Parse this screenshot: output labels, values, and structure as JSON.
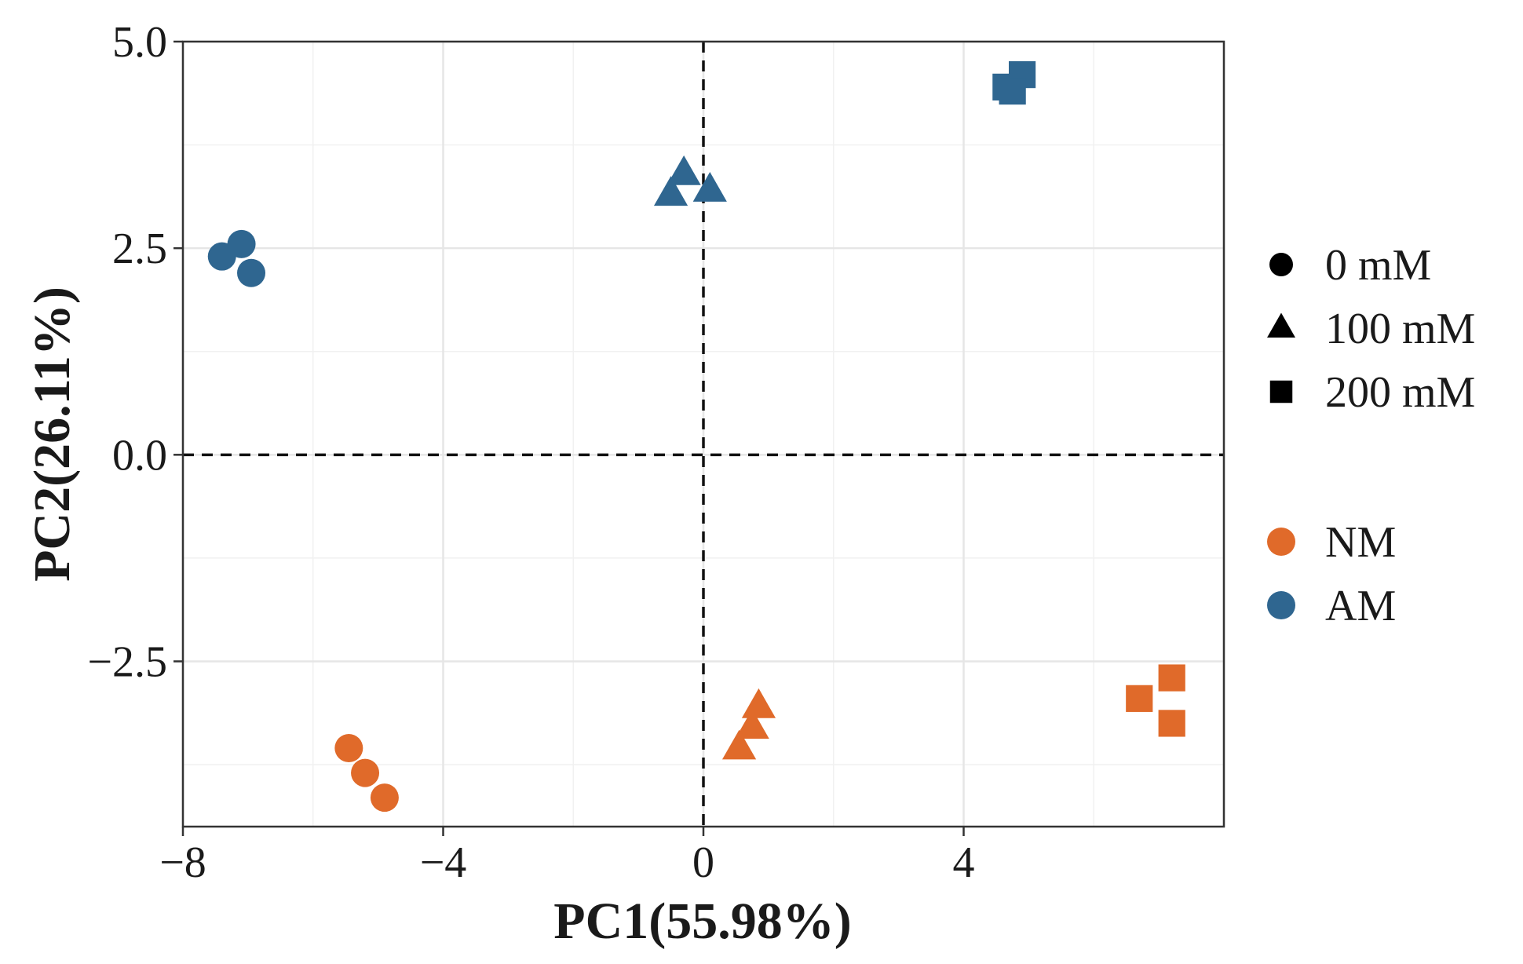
{
  "chart_data": {
    "type": "scatter",
    "title": "",
    "xlabel": "PC1(55.98%)",
    "ylabel": "PC2(26.11%)",
    "xlim": [
      -8,
      8
    ],
    "ylim": [
      -4.5,
      5.0
    ],
    "x_ticks": [
      {
        "value": -8,
        "label": "−8"
      },
      {
        "value": -4,
        "label": "−4"
      },
      {
        "value": 0,
        "label": "0"
      },
      {
        "value": 4,
        "label": "4"
      }
    ],
    "y_ticks": [
      {
        "value": 5.0,
        "label": "5.0"
      },
      {
        "value": 2.5,
        "label": "2.5"
      },
      {
        "value": 0.0,
        "label": "0.0"
      },
      {
        "value": -2.5,
        "label": "−2.5"
      }
    ],
    "grid": true,
    "reference_lines": {
      "x": 0,
      "y": 0,
      "style": "dashed"
    },
    "colors": {
      "NM": "#e06a2a",
      "AM": "#2f6690"
    },
    "legend_shape": {
      "title": "",
      "entries": [
        {
          "label": "0 mM",
          "shape": "circle"
        },
        {
          "label": "100 mM",
          "shape": "triangle"
        },
        {
          "label": "200 mM",
          "shape": "square"
        }
      ]
    },
    "legend_group": {
      "title": "",
      "entries": [
        {
          "label": "NM",
          "color": "#e06a2a"
        },
        {
          "label": "AM",
          "color": "#2f6690"
        }
      ]
    },
    "series": [
      {
        "group": "AM",
        "treatment": "0 mM",
        "shape": "circle",
        "points": [
          [
            -7.4,
            2.4
          ],
          [
            -7.1,
            2.55
          ],
          [
            -6.95,
            2.2
          ]
        ]
      },
      {
        "group": "AM",
        "treatment": "100 mM",
        "shape": "triangle",
        "points": [
          [
            -0.3,
            3.4
          ],
          [
            -0.5,
            3.15
          ],
          [
            0.1,
            3.2
          ]
        ]
      },
      {
        "group": "AM",
        "treatment": "200 mM",
        "shape": "square",
        "points": [
          [
            4.65,
            4.45
          ],
          [
            4.9,
            4.6
          ],
          [
            4.75,
            4.4
          ]
        ]
      },
      {
        "group": "NM",
        "treatment": "0 mM",
        "shape": "circle",
        "points": [
          [
            -5.45,
            -3.55
          ],
          [
            -5.2,
            -3.85
          ],
          [
            -4.9,
            -4.15
          ]
        ]
      },
      {
        "group": "NM",
        "treatment": "100 mM",
        "shape": "triangle",
        "points": [
          [
            0.85,
            -3.05
          ],
          [
            0.75,
            -3.3
          ],
          [
            0.55,
            -3.55
          ]
        ]
      },
      {
        "group": "NM",
        "treatment": "200 mM",
        "shape": "square",
        "points": [
          [
            6.7,
            -2.95
          ],
          [
            7.2,
            -2.7
          ],
          [
            7.2,
            -3.25
          ]
        ]
      }
    ]
  }
}
